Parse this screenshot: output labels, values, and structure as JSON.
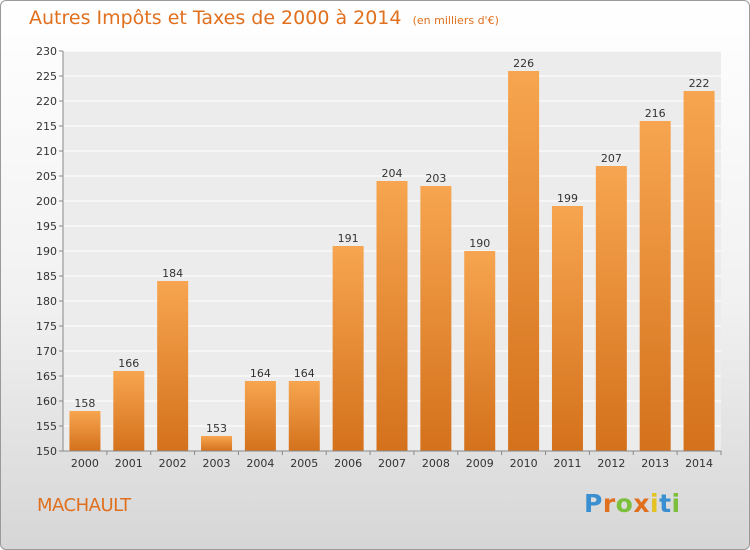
{
  "title": "Autres Impôts et Taxes de 2000 à 2014",
  "subtitle": "(en milliers d'€)",
  "commune": "MACHAULT",
  "brand": {
    "letters": [
      "P",
      "r",
      "o",
      "x",
      "i",
      "t",
      "i"
    ],
    "colors": [
      "#3a8fd1",
      "#e0701e",
      "#7bbf3a",
      "#e0701e",
      "#e4c21f",
      "#3a8fd1",
      "#7bbf3a"
    ]
  },
  "colors": {
    "bar_top": "#f7a550",
    "bar_bottom": "#d4711c",
    "accent": "#e0701e"
  },
  "chart_data": {
    "type": "bar",
    "title": "Autres Impôts et Taxes de 2000 à 2014",
    "subtitle": "(en milliers d'€)",
    "categories": [
      "2000",
      "2001",
      "2002",
      "2003",
      "2004",
      "2005",
      "2006",
      "2007",
      "2008",
      "2009",
      "2010",
      "2011",
      "2012",
      "2013",
      "2014"
    ],
    "values": [
      158,
      166,
      184,
      153,
      164,
      164,
      191,
      204,
      203,
      190,
      226,
      199,
      207,
      216,
      222
    ],
    "ylim": [
      150,
      230
    ],
    "yticks": [
      150,
      155,
      160,
      165,
      170,
      175,
      180,
      185,
      190,
      195,
      200,
      205,
      210,
      215,
      220,
      225,
      230
    ],
    "grid": true,
    "legend": "none",
    "data_labels": true
  }
}
